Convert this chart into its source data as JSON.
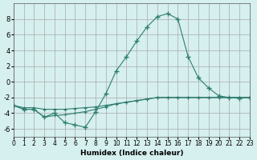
{
  "xlabel": "Humidex (Indice chaleur)",
  "background_color": "#d6efef",
  "grid_color": "#aaaaaa",
  "line_color": "#2e7d6e",
  "xlim": [
    0,
    23
  ],
  "ylim": [
    -7,
    10
  ],
  "xticks": [
    0,
    1,
    2,
    3,
    4,
    5,
    6,
    7,
    8,
    9,
    10,
    11,
    12,
    13,
    14,
    15,
    16,
    17,
    18,
    19,
    20,
    21,
    22,
    23
  ],
  "yticks": [
    -6,
    -4,
    -2,
    0,
    2,
    4,
    6,
    8
  ],
  "series": [
    [
      0,
      -3.0
    ],
    [
      1,
      -3.5
    ],
    [
      2,
      -3.5
    ],
    [
      3,
      -4.5
    ],
    [
      4,
      -4.0
    ],
    [
      5,
      -5.2
    ],
    [
      6,
      -5.5
    ],
    [
      7,
      -5.8
    ],
    [
      8,
      -3.8
    ],
    [
      9,
      -1.5
    ],
    [
      10,
      1.4
    ],
    [
      11,
      3.2
    ],
    [
      12,
      5.2
    ],
    [
      13,
      7.0
    ],
    [
      14,
      8.3
    ],
    [
      15,
      8.7
    ],
    [
      16,
      8.0
    ],
    [
      17,
      3.2
    ],
    [
      18,
      0.5
    ],
    [
      19,
      -0.8
    ],
    [
      20,
      -1.8
    ],
    [
      21,
      -2.0
    ],
    [
      22,
      -2.1
    ],
    [
      23,
      -2.0
    ]
  ],
  "series2": [
    [
      0,
      -3.0
    ],
    [
      1,
      -3.5
    ],
    [
      2,
      -3.5
    ],
    [
      3,
      -4.5
    ],
    [
      4,
      -4.3
    ],
    [
      5,
      -4.2
    ],
    [
      6,
      -4.0
    ],
    [
      7,
      -3.8
    ],
    [
      8,
      -3.5
    ],
    [
      9,
      -3.2
    ],
    [
      10,
      -2.8
    ],
    [
      11,
      -2.6
    ],
    [
      12,
      -2.4
    ],
    [
      13,
      -2.2
    ],
    [
      14,
      -2.0
    ],
    [
      15,
      -2.0
    ],
    [
      16,
      -2.0
    ],
    [
      17,
      -2.0
    ],
    [
      18,
      -2.0
    ],
    [
      19,
      -2.0
    ],
    [
      20,
      -2.0
    ],
    [
      21,
      -2.0
    ],
    [
      22,
      -2.0
    ],
    [
      23,
      -2.0
    ]
  ],
  "series3": [
    [
      0,
      -3.0
    ],
    [
      1,
      -3.3
    ],
    [
      2,
      -3.3
    ],
    [
      3,
      -3.5
    ],
    [
      4,
      -3.5
    ],
    [
      5,
      -3.5
    ],
    [
      6,
      -3.4
    ],
    [
      7,
      -3.3
    ],
    [
      8,
      -3.2
    ],
    [
      9,
      -3.0
    ],
    [
      10,
      -2.8
    ],
    [
      11,
      -2.6
    ],
    [
      12,
      -2.4
    ],
    [
      13,
      -2.2
    ],
    [
      14,
      -2.0
    ],
    [
      15,
      -2.0
    ],
    [
      16,
      -2.0
    ],
    [
      17,
      -2.0
    ],
    [
      18,
      -2.0
    ],
    [
      19,
      -2.0
    ],
    [
      20,
      -2.0
    ],
    [
      21,
      -2.0
    ],
    [
      22,
      -2.0
    ],
    [
      23,
      -2.0
    ]
  ]
}
